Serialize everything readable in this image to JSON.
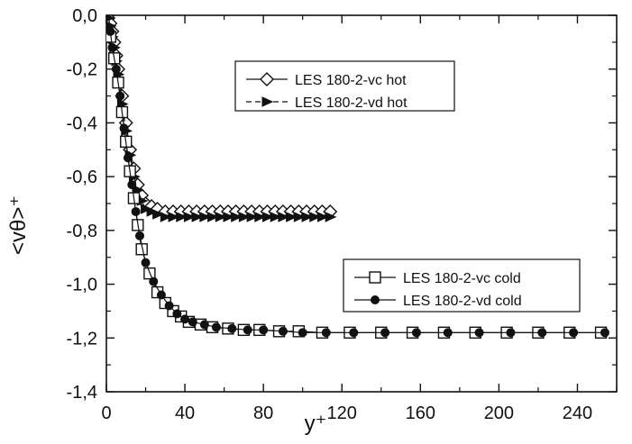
{
  "chart_data": {
    "type": "line",
    "title": "",
    "xlabel": "y⁺",
    "ylabel": "<vθ>⁺",
    "xlim": [
      0,
      260
    ],
    "ylim": [
      -1.4,
      0.0
    ],
    "x_ticks": [
      0,
      40,
      80,
      120,
      160,
      200,
      240
    ],
    "x_tick_labels": [
      "0",
      "40",
      "80",
      "120",
      "160",
      "200",
      "240"
    ],
    "y_ticks": [
      0.0,
      -0.2,
      -0.4,
      -0.6,
      -0.8,
      -1.0,
      -1.2,
      -1.4
    ],
    "y_tick_labels": [
      "0,0",
      "-0,2",
      "-0,4",
      "-0,6",
      "-0,8",
      "-1,0",
      "-1,2",
      "-1,4"
    ],
    "grid": false,
    "legends": [
      {
        "placement": "upper-center",
        "entries": [
          0,
          1
        ]
      },
      {
        "placement": "lower-right",
        "entries": [
          2,
          3
        ]
      }
    ],
    "series": [
      {
        "name": "LES 180-2-vc hot",
        "marker": "diamond-open",
        "line": "solid",
        "x": [
          1,
          2,
          3,
          4,
          5,
          6,
          8,
          10,
          12,
          14,
          16,
          18,
          20,
          23,
          26,
          30,
          34,
          38,
          42,
          46,
          50,
          54,
          58,
          62,
          66,
          70,
          74,
          78,
          82,
          86,
          90,
          94,
          98,
          102,
          106,
          110,
          114
        ],
        "y": [
          -0.01,
          -0.03,
          -0.06,
          -0.1,
          -0.15,
          -0.2,
          -0.3,
          -0.4,
          -0.5,
          -0.57,
          -0.63,
          -0.67,
          -0.7,
          -0.71,
          -0.72,
          -0.73,
          -0.73,
          -0.73,
          -0.73,
          -0.73,
          -0.73,
          -0.73,
          -0.73,
          -0.73,
          -0.73,
          -0.73,
          -0.73,
          -0.73,
          -0.73,
          -0.73,
          -0.73,
          -0.73,
          -0.73,
          -0.73,
          -0.73,
          -0.73,
          -0.73
        ]
      },
      {
        "name": "LES 180-2-vd hot",
        "marker": "triangle-right-filled",
        "line": "dashed",
        "x": [
          1,
          2,
          3,
          4,
          5,
          6,
          8,
          10,
          12,
          14,
          16,
          18,
          20,
          23,
          26,
          30,
          34,
          38,
          42,
          46,
          50,
          54,
          58,
          62,
          66,
          70,
          74,
          78,
          82,
          86,
          90,
          94,
          98,
          102,
          106,
          110,
          114
        ],
        "y": [
          -0.01,
          -0.04,
          -0.08,
          -0.12,
          -0.17,
          -0.22,
          -0.33,
          -0.43,
          -0.52,
          -0.6,
          -0.65,
          -0.69,
          -0.72,
          -0.73,
          -0.74,
          -0.75,
          -0.75,
          -0.75,
          -0.75,
          -0.75,
          -0.75,
          -0.75,
          -0.75,
          -0.75,
          -0.75,
          -0.75,
          -0.75,
          -0.75,
          -0.75,
          -0.75,
          -0.75,
          -0.75,
          -0.75,
          -0.75,
          -0.75,
          -0.75,
          -0.75
        ]
      },
      {
        "name": "LES 180-2-vc cold",
        "marker": "square-open",
        "line": "solid",
        "x": [
          2,
          4,
          6,
          8,
          10,
          12,
          14,
          16,
          18,
          22,
          26,
          30,
          34,
          38,
          42,
          48,
          54,
          62,
          70,
          78,
          88,
          98,
          110,
          124,
          140,
          156,
          172,
          188,
          204,
          220,
          236,
          252
        ],
        "y": [
          -0.08,
          -0.16,
          -0.25,
          -0.36,
          -0.47,
          -0.58,
          -0.68,
          -0.78,
          -0.87,
          -0.96,
          -1.03,
          -1.07,
          -1.1,
          -1.12,
          -1.14,
          -1.15,
          -1.16,
          -1.165,
          -1.17,
          -1.17,
          -1.175,
          -1.175,
          -1.18,
          -1.18,
          -1.18,
          -1.18,
          -1.18,
          -1.18,
          -1.18,
          -1.18,
          -1.18,
          -1.18
        ]
      },
      {
        "name": "LES 180-2-vd cold",
        "marker": "circle-filled",
        "line": "solid",
        "x": [
          2,
          3,
          5,
          7,
          9,
          11,
          13,
          15,
          17,
          20,
          24,
          28,
          32,
          36,
          40,
          44,
          50,
          56,
          64,
          72,
          80,
          90,
          100,
          112,
          126,
          142,
          158,
          174,
          190,
          206,
          222,
          238,
          254
        ],
        "y": [
          -0.06,
          -0.12,
          -0.2,
          -0.3,
          -0.42,
          -0.53,
          -0.63,
          -0.73,
          -0.82,
          -0.92,
          -0.99,
          -1.04,
          -1.08,
          -1.11,
          -1.13,
          -1.14,
          -1.15,
          -1.16,
          -1.165,
          -1.17,
          -1.17,
          -1.175,
          -1.18,
          -1.18,
          -1.18,
          -1.18,
          -1.18,
          -1.18,
          -1.18,
          -1.18,
          -1.18,
          -1.18,
          -1.18
        ]
      }
    ]
  }
}
